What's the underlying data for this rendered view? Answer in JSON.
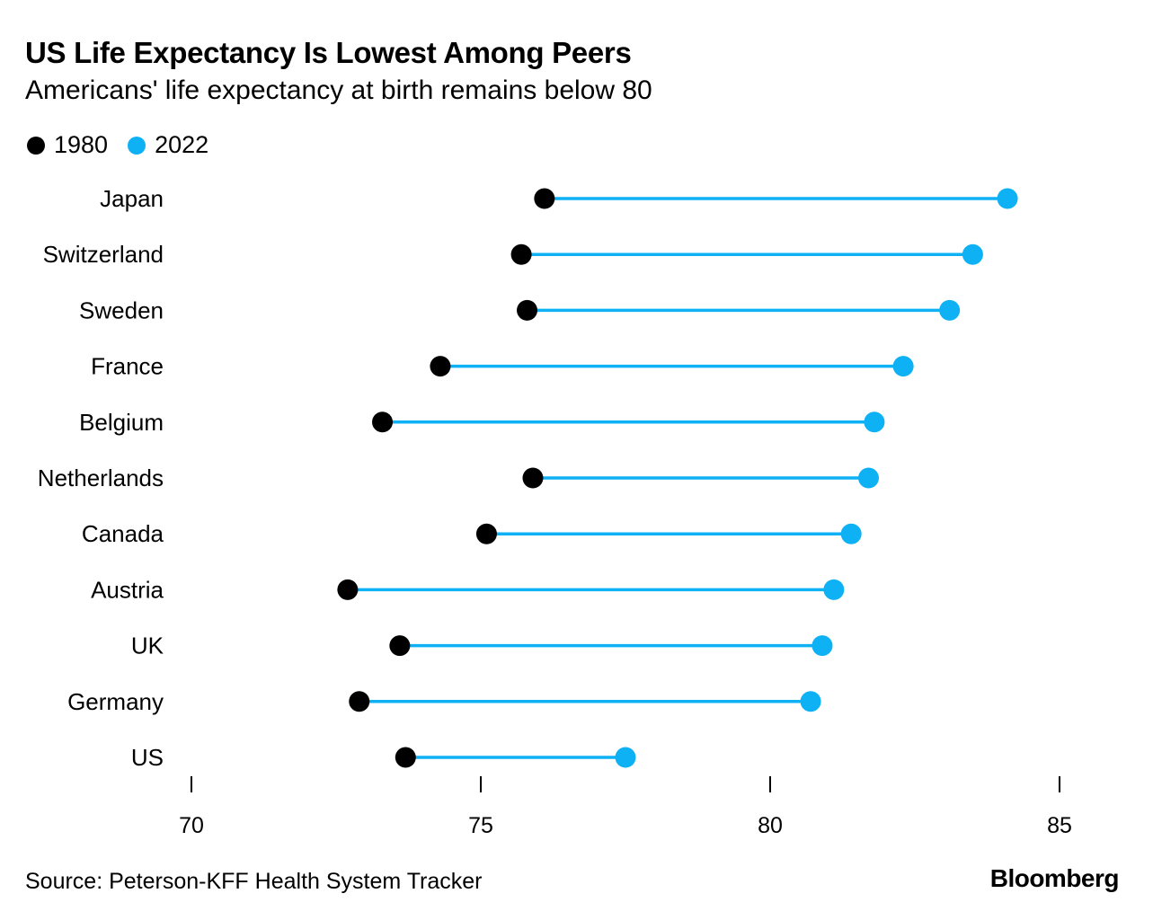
{
  "colors": {
    "series_1980": "#000000",
    "series_2022": "#0fb1f5",
    "axis": "#000000",
    "text": "#000000"
  },
  "footer": {
    "source": "Source: Peterson-KFF Health System Tracker",
    "brand": "Bloomberg"
  },
  "chart_data": {
    "type": "dumbbell",
    "title": "US Life Expectancy Is Lowest Among Peers",
    "subtitle": "Americans' life expectancy at birth remains below 80",
    "xlabel": "",
    "ylabel": "",
    "xlim": [
      70,
      86
    ],
    "xticks": [
      70,
      75,
      80,
      85
    ],
    "grid": false,
    "legend_position": "top-left",
    "categories": [
      "Japan",
      "Switzerland",
      "Sweden",
      "France",
      "Belgium",
      "Netherlands",
      "Canada",
      "Austria",
      "UK",
      "Germany",
      "US"
    ],
    "series": [
      {
        "name": "1980",
        "color": "#000000",
        "values": [
          76.1,
          75.7,
          75.8,
          74.3,
          73.3,
          75.9,
          75.1,
          72.7,
          73.6,
          72.9,
          73.7
        ]
      },
      {
        "name": "2022",
        "color": "#0fb1f5",
        "values": [
          84.1,
          83.5,
          83.1,
          82.3,
          81.8,
          81.7,
          81.4,
          81.1,
          80.9,
          80.7,
          77.5
        ]
      }
    ]
  }
}
